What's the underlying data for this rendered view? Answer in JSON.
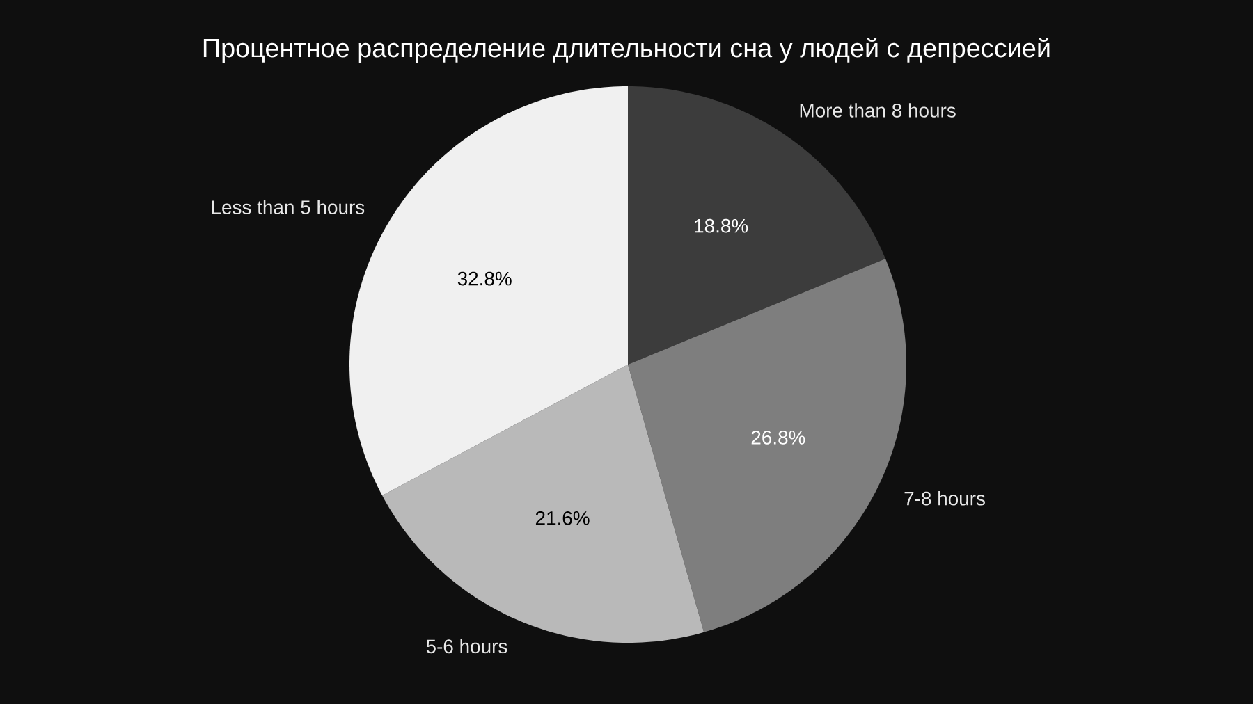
{
  "chart_data": {
    "type": "pie",
    "title": "Процентное распределение длительности сна у людей с депрессией",
    "categories": [
      "More than 8 hours",
      "7-8 hours",
      "5-6 hours",
      "Less than 5 hours"
    ],
    "values": [
      18.8,
      26.8,
      21.6,
      32.8
    ],
    "colors": [
      "#3c3c3c",
      "#7e7e7e",
      "#b9b9b9",
      "#f0f0f0"
    ],
    "value_labels": [
      "18.8%",
      "26.8%",
      "21.6%",
      "32.8%"
    ]
  }
}
